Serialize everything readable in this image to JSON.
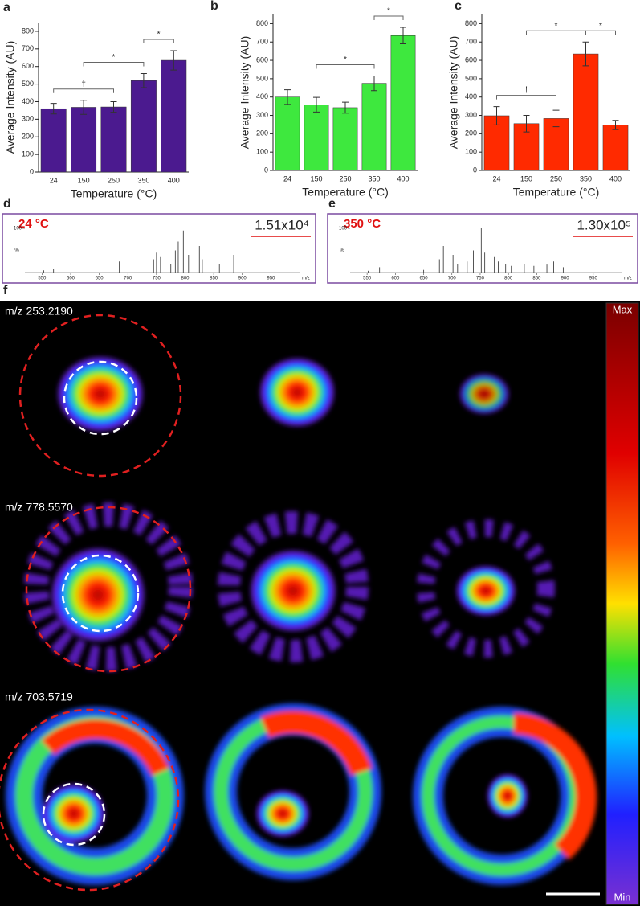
{
  "chart_data": [
    {
      "type": "bar",
      "panel": "a",
      "ylabel": "Average Intensity (AU)",
      "xlabel": "Temperature (°C)",
      "categories": [
        "24",
        "150",
        "250",
        "350",
        "400"
      ],
      "values": [
        360,
        368,
        370,
        520,
        635
      ],
      "errors": [
        30,
        40,
        30,
        40,
        55
      ],
      "color": "#4b1a8f",
      "ylim": [
        0,
        850
      ],
      "yticks": [
        0,
        100,
        200,
        300,
        400,
        500,
        600,
        700,
        800
      ],
      "annotations": [
        {
          "label": "†",
          "between": [
            "24",
            "250"
          ]
        },
        {
          "label": "*",
          "between": [
            "150",
            "350"
          ]
        },
        {
          "label": "*",
          "between": [
            "350",
            "400"
          ]
        }
      ]
    },
    {
      "type": "bar",
      "panel": "b",
      "ylabel": "Average Intensity (AU)",
      "xlabel": "Temperature (°C)",
      "categories": [
        "24",
        "150",
        "250",
        "350",
        "400"
      ],
      "values": [
        400,
        358,
        342,
        475,
        735
      ],
      "errors": [
        40,
        40,
        30,
        40,
        45
      ],
      "color": "#3ee83e",
      "ylim": [
        0,
        850
      ],
      "yticks": [
        0,
        100,
        200,
        300,
        400,
        500,
        600,
        700,
        800
      ],
      "annotations": [
        {
          "label": "*",
          "between": [
            "150",
            "350"
          ]
        },
        {
          "label": "*",
          "between": [
            "350",
            "400"
          ]
        }
      ]
    },
    {
      "type": "bar",
      "panel": "c",
      "ylabel": "Average Intensity (AU)",
      "xlabel": "Temperature (°C)",
      "categories": [
        "24",
        "150",
        "250",
        "350",
        "400"
      ],
      "values": [
        298,
        255,
        283,
        635,
        248
      ],
      "errors": [
        50,
        45,
        45,
        65,
        25
      ],
      "color": "#ff2a00",
      "ylim": [
        0,
        850
      ],
      "yticks": [
        0,
        100,
        200,
        300,
        400,
        500,
        600,
        700,
        800
      ],
      "annotations": [
        {
          "label": "†",
          "between": [
            "24",
            "250"
          ]
        },
        {
          "label": "*",
          "between": [
            "150",
            "350"
          ]
        },
        {
          "label": "*",
          "between": [
            "350",
            "400"
          ]
        }
      ]
    },
    {
      "type": "spectrum",
      "panel": "d",
      "title": "24 °C",
      "intensity": "1.51x10⁴",
      "xlabel": "m/z",
      "ylabel": "%",
      "x": [
        553,
        570,
        685,
        745,
        750,
        757,
        775,
        783,
        788,
        797,
        800,
        806,
        825,
        830,
        860,
        885
      ],
      "values": [
        5,
        8,
        25,
        30,
        45,
        35,
        20,
        50,
        70,
        95,
        30,
        40,
        60,
        30,
        20,
        40
      ],
      "color": "#555555",
      "xlim": [
        520,
        1000
      ],
      "xticks": [
        550,
        600,
        650,
        700,
        750,
        800,
        850,
        900,
        950
      ],
      "ylim": [
        0,
        100
      ],
      "yticks": [
        100
      ]
    },
    {
      "type": "spectrum",
      "panel": "e",
      "title": "350 °C",
      "intensity": "1.30x10⁵",
      "xlabel": "m/z",
      "ylabel": "%",
      "x": [
        552,
        572,
        650,
        678,
        685,
        702,
        710,
        727,
        738,
        752,
        758,
        775,
        782,
        795,
        805,
        828,
        845,
        868,
        880,
        897
      ],
      "values": [
        4,
        12,
        6,
        30,
        60,
        40,
        20,
        25,
        50,
        100,
        45,
        35,
        25,
        20,
        15,
        20,
        15,
        18,
        25,
        12
      ],
      "color": "#555555",
      "xlim": [
        520,
        1000
      ],
      "xticks": [
        550,
        600,
        650,
        700,
        750,
        800,
        850,
        900,
        950
      ],
      "ylim": [
        0,
        100
      ],
      "yticks": [
        100
      ]
    }
  ],
  "image_panel": {
    "panel": "f",
    "rows": [
      "m/z 253.2190",
      "m/z 778.5570",
      "m/z 703.5719"
    ],
    "colorbar": {
      "max": "Max",
      "min": "Min"
    }
  }
}
